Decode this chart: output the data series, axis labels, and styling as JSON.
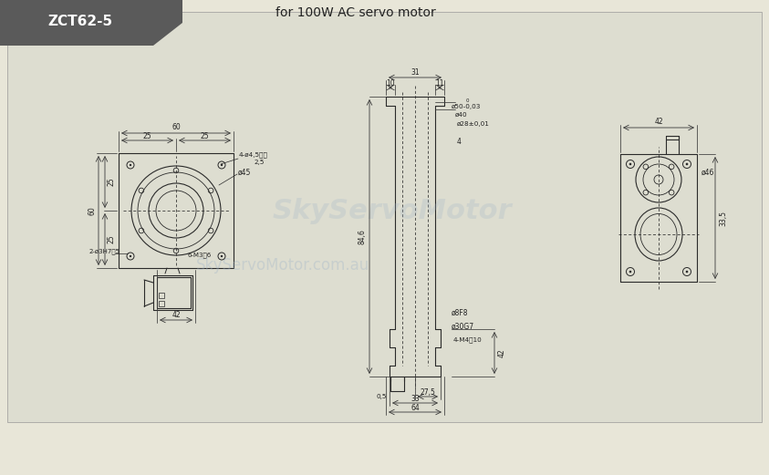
{
  "title": "ZCT62-5",
  "subtitle": "for 100W AC servo motor",
  "bg_color": "#e8e6d8",
  "header_bg": "#5a5a5a",
  "header_text_color": "#ffffff",
  "line_color": "#2a2a2a",
  "dim_color": "#3a3a3a",
  "watermark1": "SkyServoMotor.com.au",
  "watermark2": "SkyServoMotor",
  "watermark_color": "#a0b4c8",
  "figsize": [
    8.43,
    5.21
  ],
  "dpi": 100
}
